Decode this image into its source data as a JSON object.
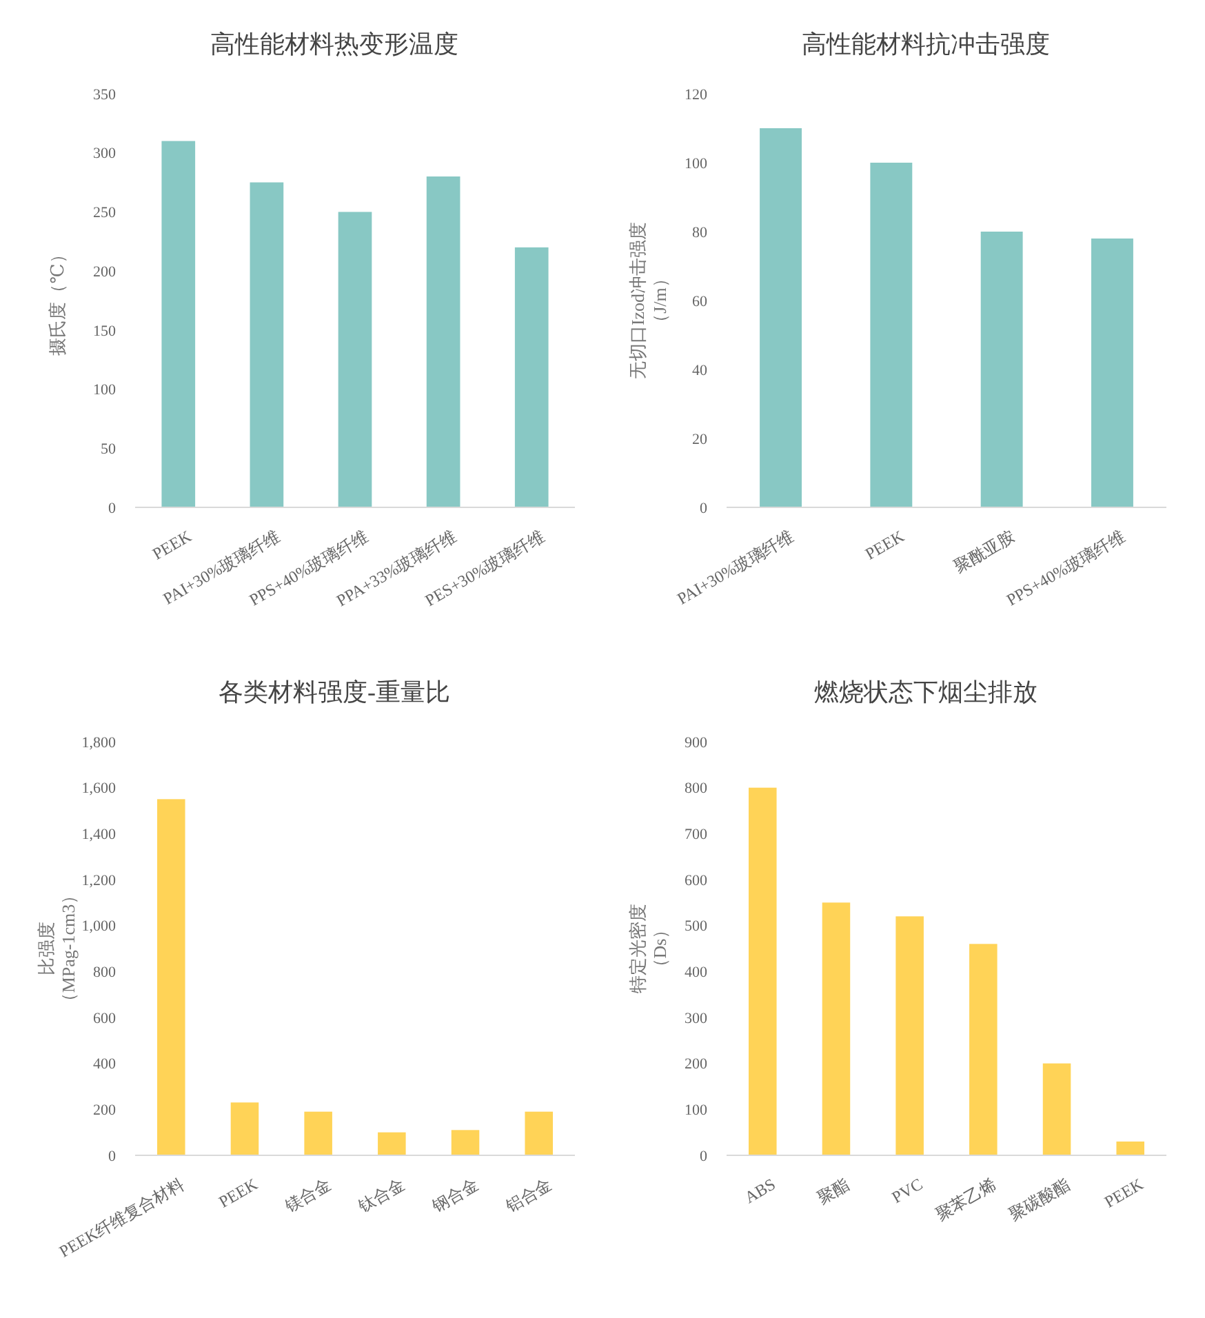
{
  "chart_data": [
    {
      "type": "bar",
      "title": "高性能材料热变形温度",
      "ylabel": "摄氏度（℃）",
      "categories": [
        "PEEK",
        "PAI+30%玻璃纤维",
        "PPS+40%玻璃纤维",
        "PPA+33%玻璃纤维",
        "PES+30%玻璃纤维"
      ],
      "values": [
        310,
        275,
        250,
        280,
        220
      ],
      "color": "#88c8c4",
      "ylim": [
        0,
        350
      ],
      "yticks": [
        0,
        50,
        100,
        150,
        200,
        250,
        300,
        350
      ]
    },
    {
      "type": "bar",
      "title": "高性能材料抗冲击强度",
      "ylabel": "无切口Izod冲击强度（J/m）",
      "categories": [
        "PAI+30%玻璃纤维",
        "PEEK",
        "聚酰亚胺",
        "PPS+40%玻璃纤维"
      ],
      "values": [
        110,
        100,
        80,
        78
      ],
      "color": "#88c8c4",
      "ylim": [
        0,
        120
      ],
      "yticks": [
        0,
        20,
        40,
        60,
        80,
        100,
        120
      ]
    },
    {
      "type": "bar",
      "title": "各类材料强度-重量比",
      "ylabel": "比强度（MPag-1cm3）",
      "categories": [
        "PEEK纤维复合材料",
        "PEEK",
        "镁合金",
        "钛合金",
        "钢合金",
        "铝合金"
      ],
      "values": [
        1550,
        230,
        190,
        100,
        110,
        190
      ],
      "color": "#ffd357",
      "ylim": [
        0,
        1800
      ],
      "yticks": [
        0,
        {
          "value": 200,
          "label": "200"
        },
        {
          "value": 400,
          "label": "400"
        },
        {
          "value": 600,
          "label": "600"
        },
        {
          "value": 800,
          "label": "800"
        },
        {
          "value": 1000,
          "label": "1,000"
        },
        {
          "value": 1200,
          "label": "1,200"
        },
        {
          "value": 1400,
          "label": "1,400"
        },
        {
          "value": 1600,
          "label": "1,600"
        },
        {
          "value": 1800,
          "label": "1,800"
        }
      ]
    },
    {
      "type": "bar",
      "title": "燃烧状态下烟尘排放",
      "ylabel": "特定光密度（Ds）",
      "categories": [
        "ABS",
        "聚酯",
        "PVC",
        "聚苯乙烯",
        "聚碳酸酯",
        "PEEK"
      ],
      "values": [
        800,
        550,
        520,
        460,
        200,
        30
      ],
      "color": "#ffd357",
      "ylim": [
        0,
        900
      ],
      "yticks": [
        0,
        100,
        200,
        300,
        400,
        500,
        600,
        700,
        800,
        900
      ]
    }
  ]
}
